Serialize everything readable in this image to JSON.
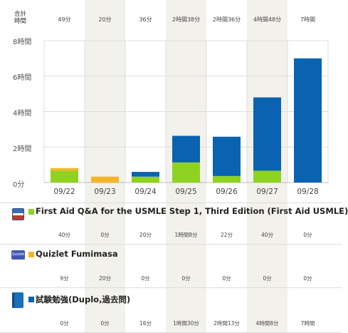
{
  "header": {
    "total_label_line1": "合計",
    "total_label_line2": "時間"
  },
  "totals": [
    "49分",
    "20分",
    "36分",
    "2時間38分",
    "2時間36分",
    "4時間48分",
    "7時間"
  ],
  "colors": {
    "green": "#8ed321",
    "orange": "#f5b52a",
    "blue": "#0a63b0",
    "shade": "#f2f1ec"
  },
  "chart_data": {
    "type": "bar",
    "stacked": true,
    "categories": [
      "09/22",
      "09/23",
      "09/24",
      "09/25",
      "09/26",
      "09/27",
      "09/28"
    ],
    "series": [
      {
        "name": "First Aid Q&A for the USMLE Step 1, Third Edition (First Aid USMLE)",
        "color": "#8ed321",
        "values_minutes": [
          40,
          0,
          20,
          68,
          22,
          40,
          0
        ]
      },
      {
        "name": "Quizlet Fumimasa",
        "color": "#f5b52a",
        "values_minutes": [
          9,
          20,
          0,
          0,
          0,
          0,
          0
        ]
      },
      {
        "name": "試験勉強(Duplo,過去問)",
        "color": "#0a63b0",
        "values_minutes": [
          0,
          0,
          16,
          90,
          133,
          248,
          420
        ]
      }
    ],
    "y_ticks": [
      "0分",
      "2時間",
      "4時間",
      "6時間",
      "8時間"
    ],
    "ylim_hours": [
      0,
      8
    ],
    "grid": true
  },
  "items": [
    {
      "title": "First Aid Q&A for the USMLE Step 1, Third Edition (First Aid USMLE)",
      "icon": "book-cover-icon",
      "values": [
        "40分",
        "0分",
        "20分",
        "1時間8分",
        "22分",
        "40分",
        "0分"
      ]
    },
    {
      "title": "Quizlet Fumimasa",
      "icon": "quizlet-logo-icon",
      "icon_text": "Quizlet",
      "values": [
        "9分",
        "20分",
        "0分",
        "0分",
        "0分",
        "0分",
        "0分"
      ]
    },
    {
      "title": "試験勉強(Duplo,過去問)",
      "icon": "notebook-icon",
      "values": [
        "0分",
        "0分",
        "16分",
        "1時間30分",
        "2時間13分",
        "4時間8分",
        "7時間"
      ]
    }
  ]
}
